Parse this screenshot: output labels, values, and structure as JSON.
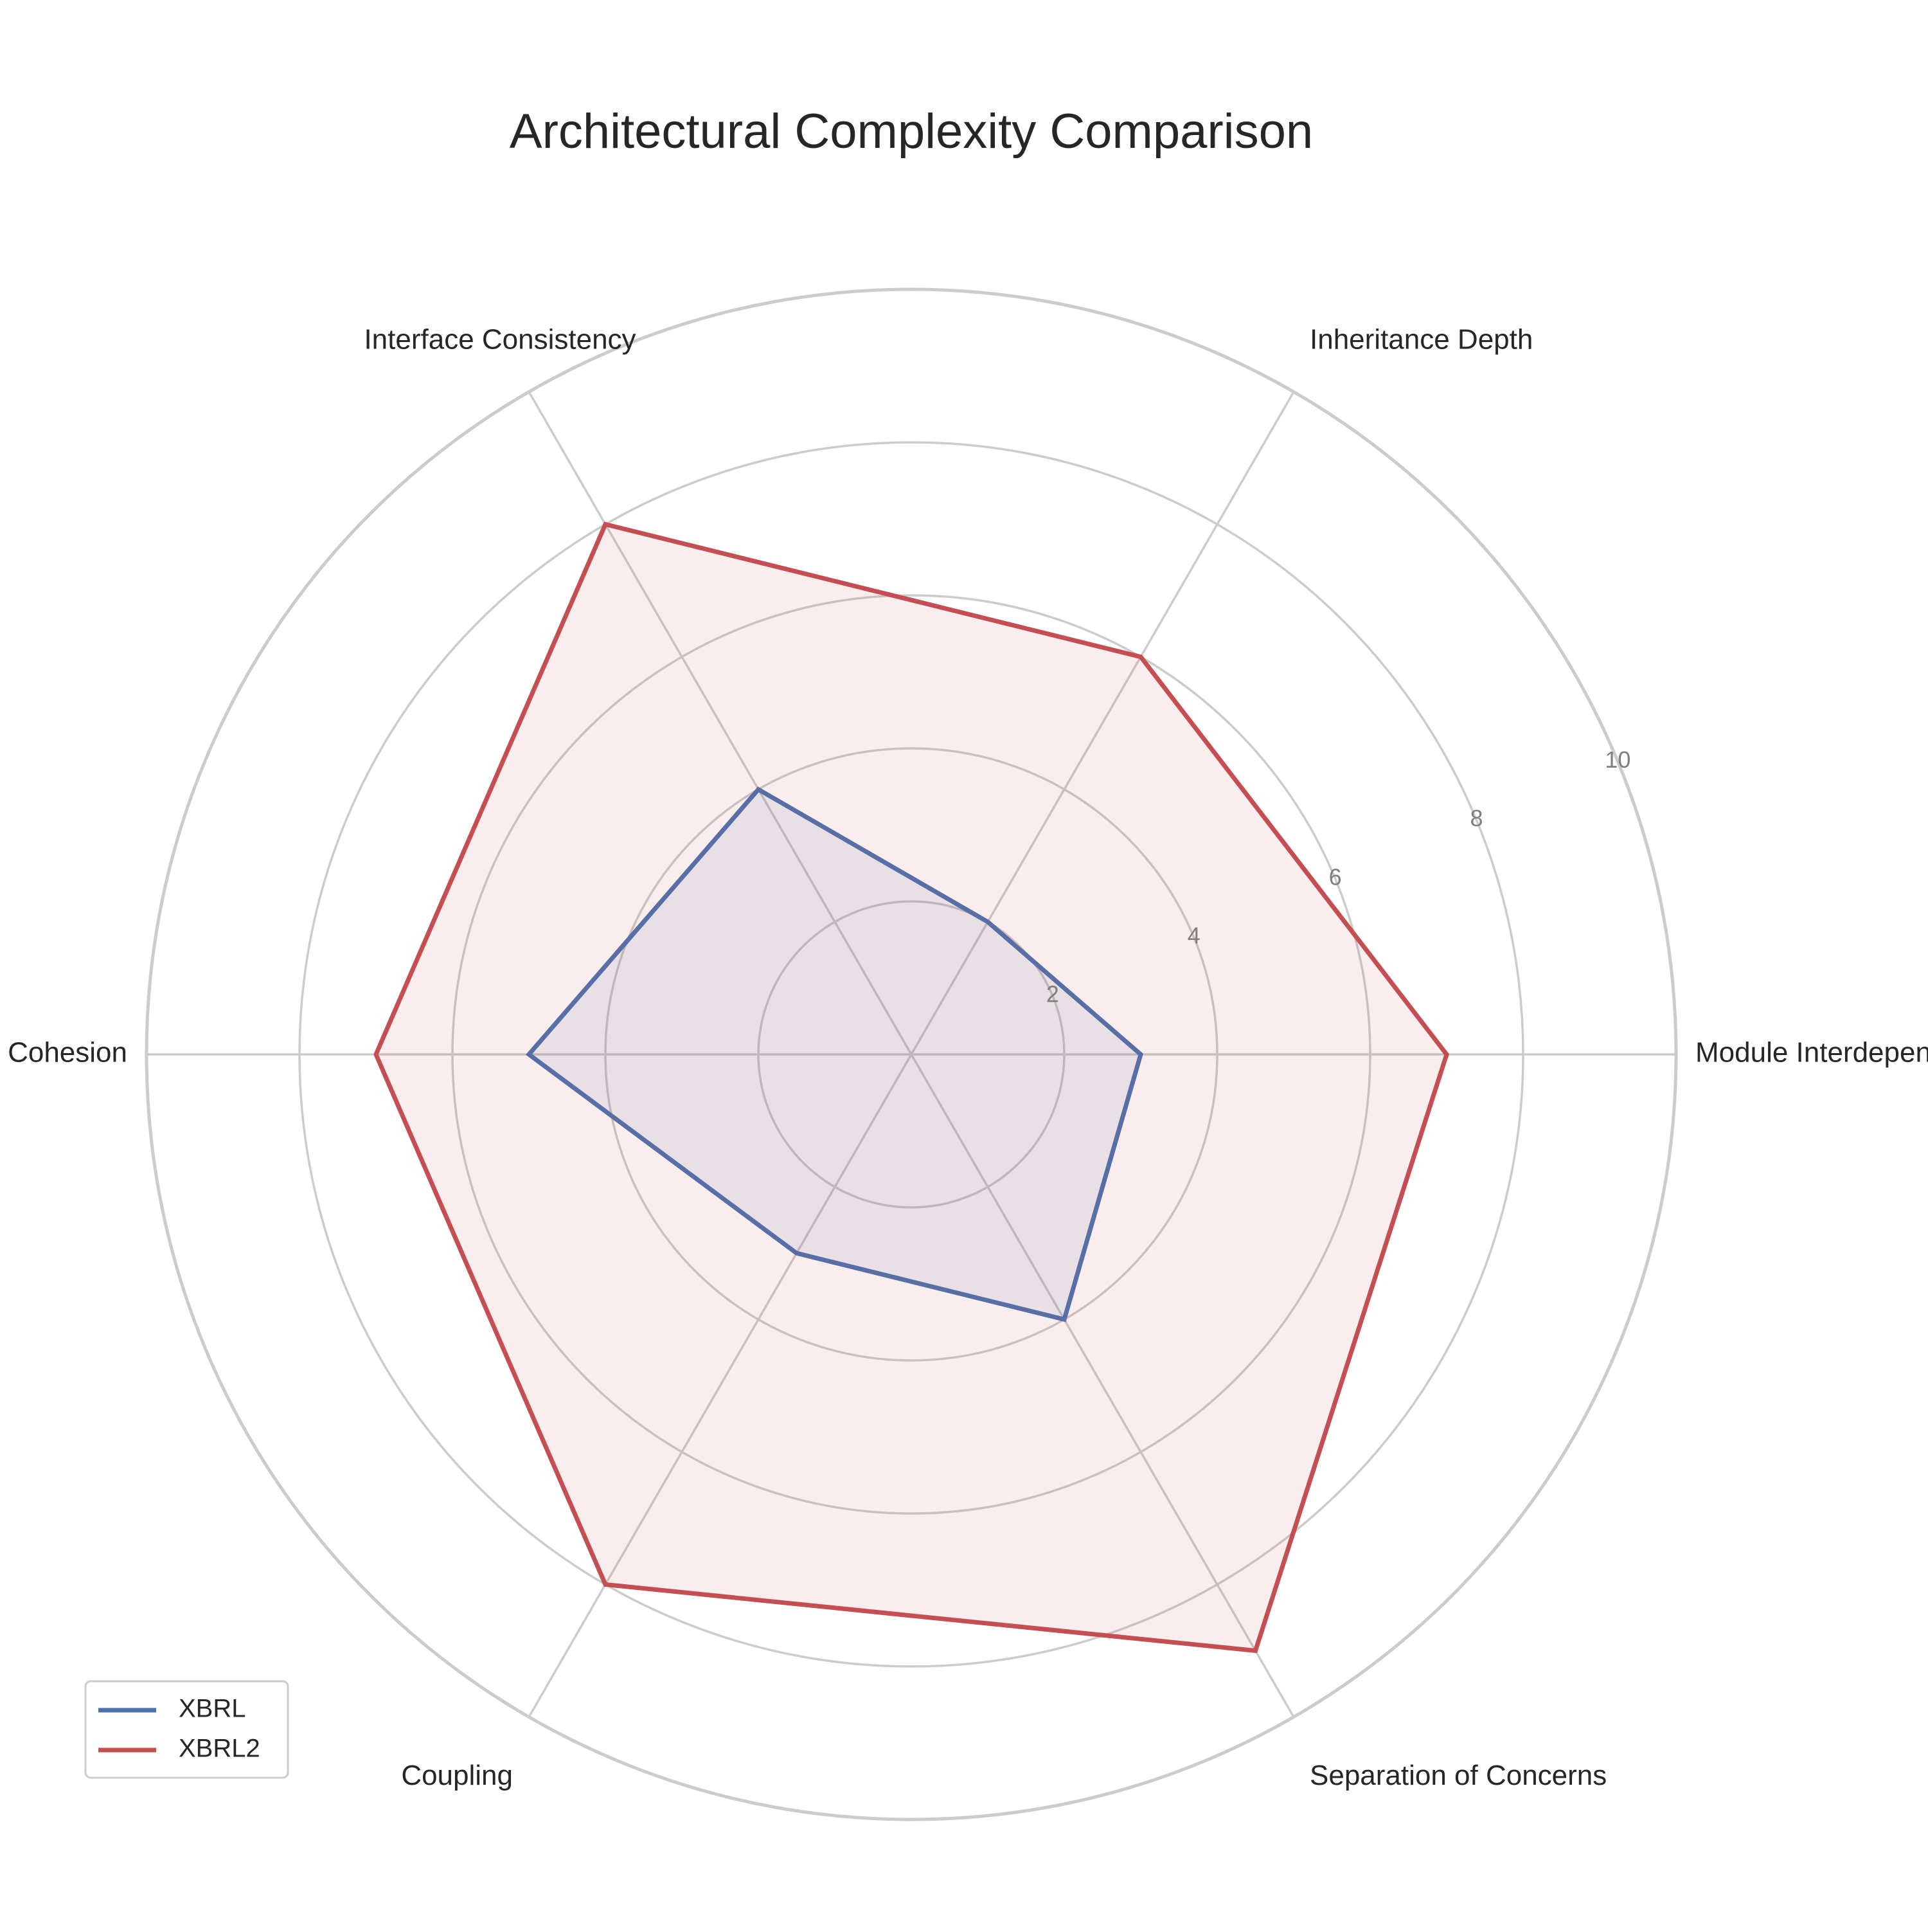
{
  "chart_data": {
    "type": "radar",
    "title": "Architectural Complexity Comparison",
    "categories": [
      "Module Interdependence",
      "Inheritance Depth",
      "Interface Consistency",
      "Cohesion",
      "Coupling",
      "Separation of Concerns"
    ],
    "series": [
      {
        "name": "XBRL",
        "values": [
          3,
          2,
          4,
          5,
          3,
          4
        ],
        "color": "#4c72b0"
      },
      {
        "name": "XBRL2",
        "values": [
          7,
          6,
          8,
          7,
          8,
          9
        ],
        "color": "#c44e52"
      }
    ],
    "radial_ticks": [
      2,
      4,
      6,
      8,
      10
    ],
    "rlim": [
      0,
      10
    ],
    "grid": true,
    "legend_position": "lower-left"
  }
}
